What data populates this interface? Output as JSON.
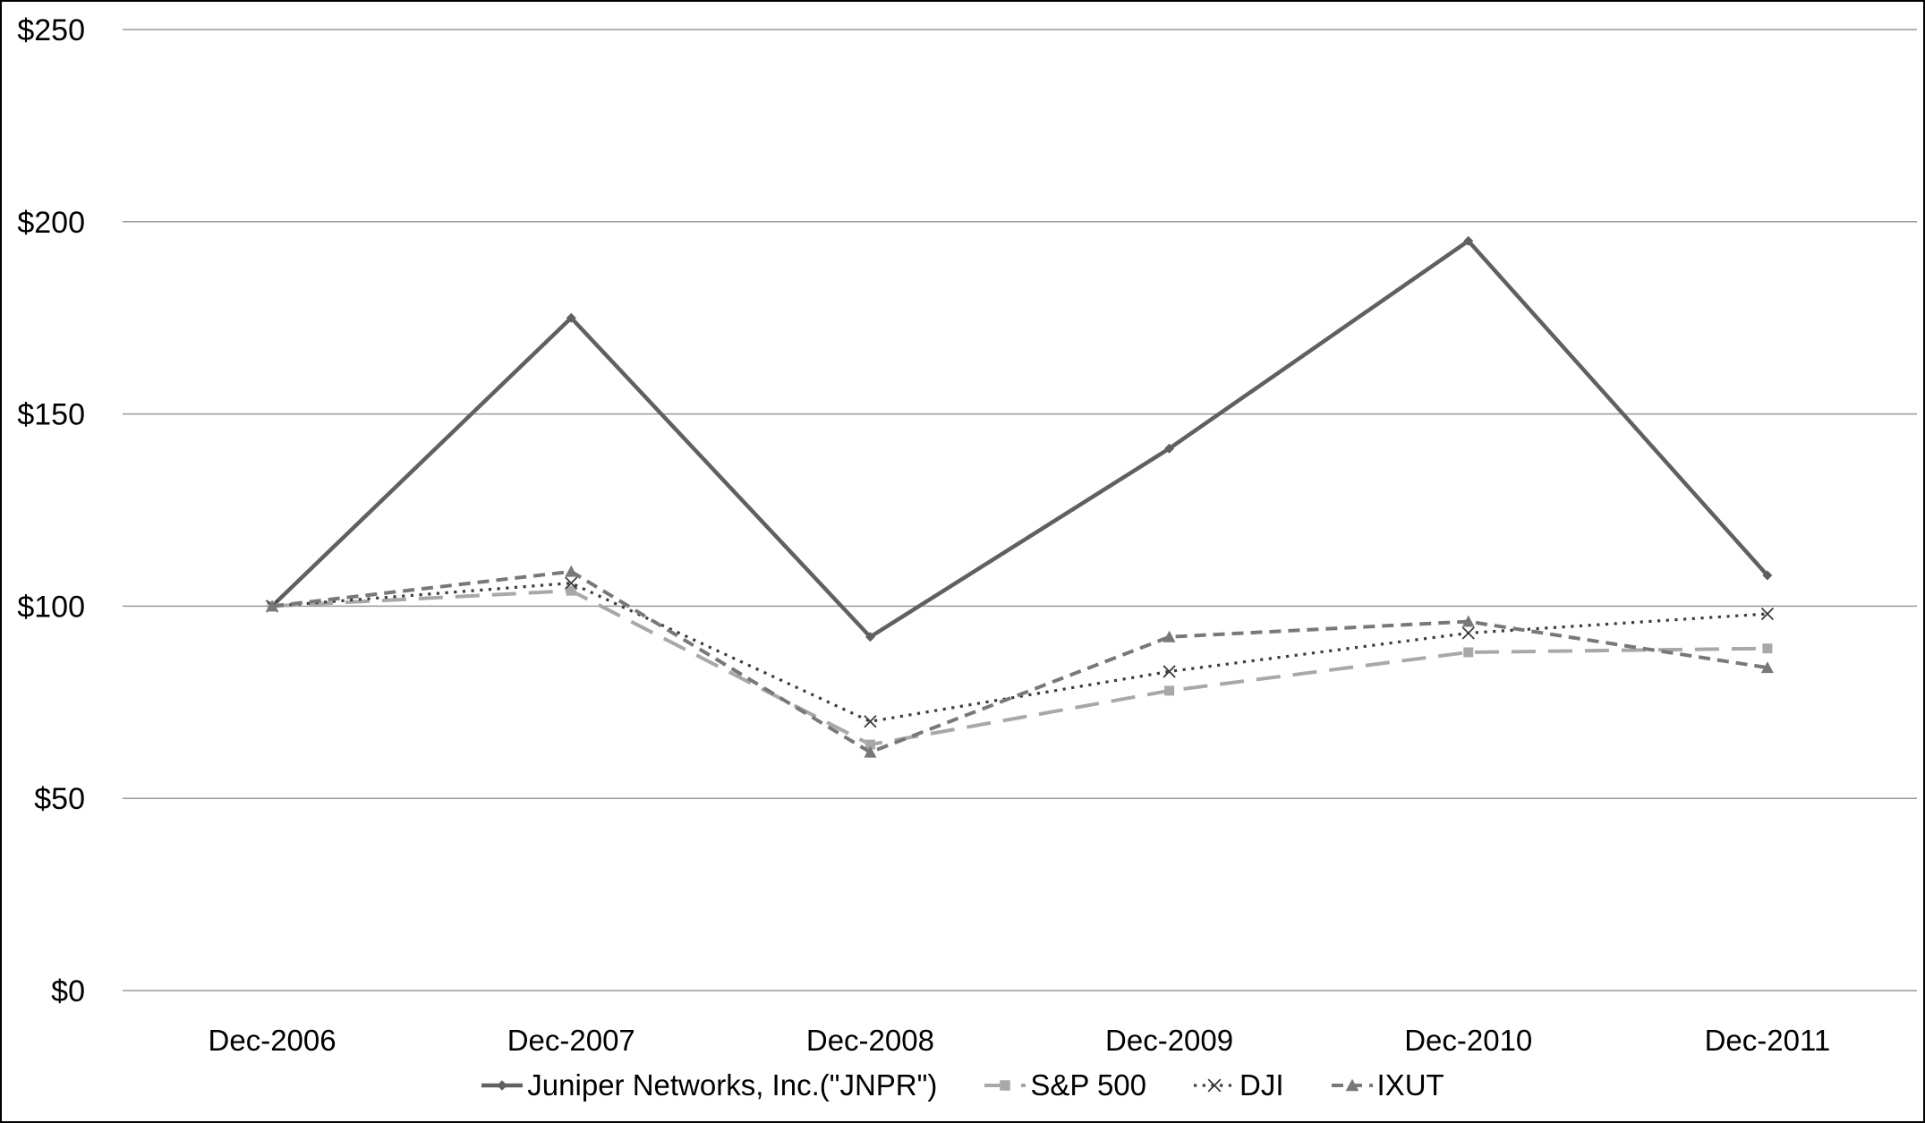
{
  "chart_data": {
    "type": "line",
    "title": "",
    "xlabel": "",
    "ylabel": "",
    "categories": [
      "Dec-2006",
      "Dec-2007",
      "Dec-2008",
      "Dec-2009",
      "Dec-2010",
      "Dec-2011"
    ],
    "series": [
      {
        "name": "Juniper Networks, Inc.(\"JNPR\")",
        "values": [
          100,
          175,
          92,
          141,
          195,
          108
        ],
        "color": "#606060",
        "dash": "solid",
        "marker": "diamond"
      },
      {
        "name": "S&P 500",
        "values": [
          100,
          104,
          64,
          78,
          88,
          89
        ],
        "color": "#a8a8a8",
        "dash": "long-dash",
        "marker": "square"
      },
      {
        "name": "DJI",
        "values": [
          100,
          106,
          70,
          83,
          93,
          98
        ],
        "color": "#3d3d3d",
        "dash": "dot",
        "marker": "x"
      },
      {
        "name": "IXUT",
        "values": [
          100,
          109,
          62,
          92,
          96,
          84
        ],
        "color": "#787878",
        "dash": "short-dash",
        "marker": "triangle"
      }
    ],
    "y_ticks": [
      {
        "label": "$250",
        "value": 250
      },
      {
        "label": "$200",
        "value": 200
      },
      {
        "label": "$150",
        "value": 150
      },
      {
        "label": "$100",
        "value": 100
      },
      {
        "label": "$50",
        "value": 50
      },
      {
        "label": "$0",
        "value": 0
      }
    ],
    "ylim": [
      0,
      250
    ],
    "grid": "horizontal",
    "legend_position": "bottom"
  },
  "colors": {
    "background": "#ffffff",
    "gridline": "#9a9a9a",
    "axis_text": "#000000",
    "border": "#000000"
  }
}
